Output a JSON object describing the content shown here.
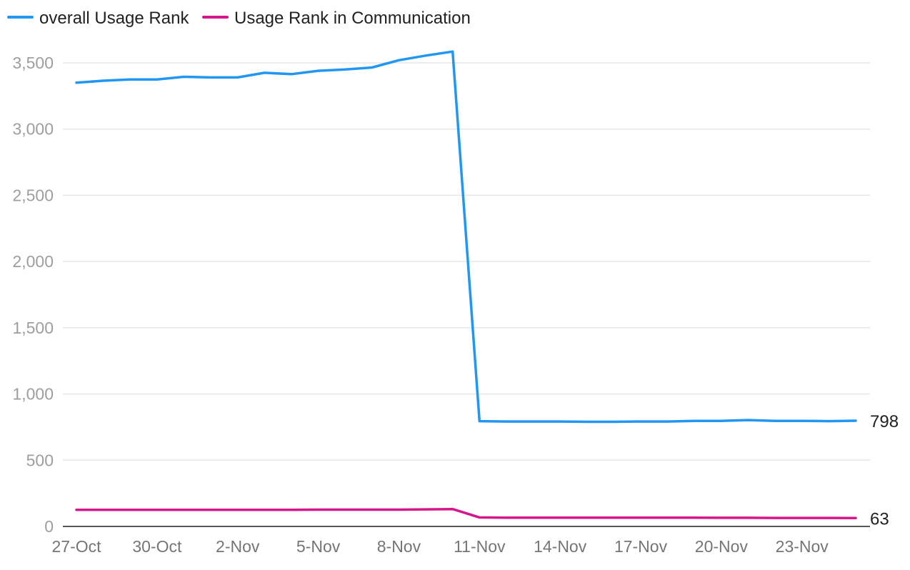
{
  "chart_data": {
    "type": "line",
    "x": [
      "27-Oct",
      "28-Oct",
      "29-Oct",
      "30-Oct",
      "31-Oct",
      "1-Nov",
      "2-Nov",
      "3-Nov",
      "4-Nov",
      "5-Nov",
      "6-Nov",
      "7-Nov",
      "8-Nov",
      "9-Nov",
      "10-Nov",
      "11-Nov",
      "12-Nov",
      "13-Nov",
      "14-Nov",
      "15-Nov",
      "16-Nov",
      "17-Nov",
      "18-Nov",
      "19-Nov",
      "20-Nov",
      "21-Nov",
      "22-Nov",
      "23-Nov",
      "24-Nov",
      "25-Nov"
    ],
    "x_tick_labels": [
      "27-Oct",
      "30-Oct",
      "2-Nov",
      "5-Nov",
      "8-Nov",
      "11-Nov",
      "14-Nov",
      "17-Nov",
      "20-Nov",
      "23-Nov"
    ],
    "y_tick_labels": [
      "0",
      "500",
      "1,000",
      "1,500",
      "2,000",
      "2,500",
      "3,000",
      "3,500"
    ],
    "ylim": [
      0,
      3500
    ],
    "grid": true,
    "legend_position": "top-left",
    "series": [
      {
        "name": "overall Usage Rank",
        "color": "#2196f3",
        "values": [
          3350,
          3365,
          3375,
          3375,
          3395,
          3390,
          3390,
          3425,
          3415,
          3440,
          3450,
          3465,
          3520,
          3555,
          3585,
          795,
          792,
          792,
          792,
          790,
          790,
          792,
          792,
          797,
          797,
          803,
          797,
          797,
          795,
          798
        ],
        "end_label": "798"
      },
      {
        "name": "Usage Rank in Communication",
        "color": "#d6168b",
        "values": [
          125,
          125,
          125,
          125,
          125,
          125,
          125,
          125,
          125,
          127,
          127,
          127,
          127,
          129,
          131,
          68,
          66,
          66,
          66,
          66,
          66,
          66,
          66,
          66,
          65,
          65,
          64,
          64,
          64,
          63
        ],
        "end_label": "63"
      }
    ]
  }
}
